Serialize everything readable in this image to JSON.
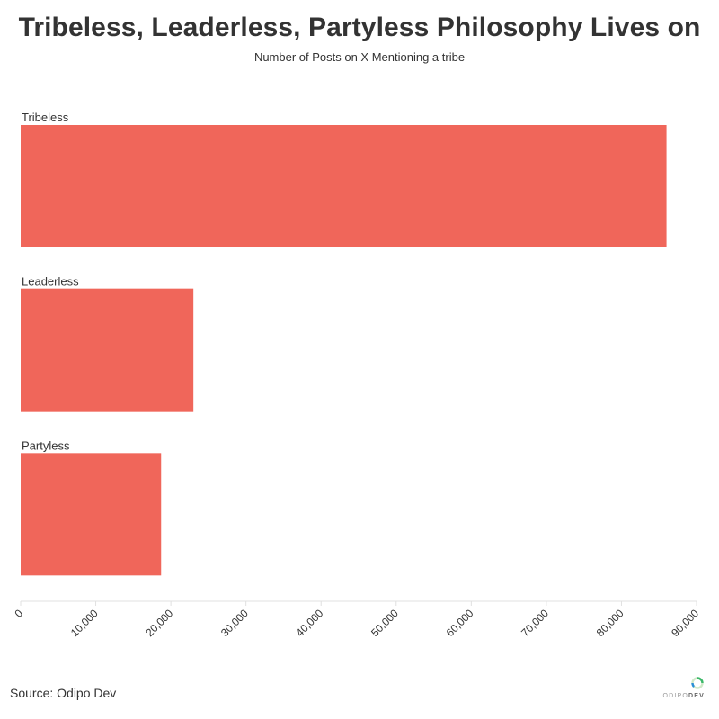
{
  "header": {
    "title": "Tribeless, Leaderless, Partyless Philosophy Lives on",
    "subtitle": "Number of Posts on X Mentioning a tribe"
  },
  "footer": {
    "source": "Source: Odipo Dev",
    "logo_light": "ODIPO",
    "logo_bold": "DEV"
  },
  "colors": {
    "bar": "#f0665a",
    "axis": "#e0e0e0",
    "text": "#333333"
  },
  "chart_data": {
    "type": "bar",
    "orientation": "horizontal",
    "title": "Tribeless, Leaderless, Partyless Philosophy Lives on",
    "subtitle": "Number of Posts on X Mentioning a tribe",
    "categories": [
      "Tribeless",
      "Leaderless",
      "Partyless"
    ],
    "values": [
      86000,
      23000,
      18700
    ],
    "xlim": [
      0,
      90000
    ],
    "x_ticks": [
      0,
      10000,
      20000,
      30000,
      40000,
      50000,
      60000,
      70000,
      80000,
      90000
    ],
    "x_tick_labels": [
      "0",
      "10,000",
      "20,000",
      "30,000",
      "40,000",
      "50,000",
      "60,000",
      "70,000",
      "80,000",
      "90,000"
    ],
    "xlabel": "",
    "ylabel": "",
    "grid": false,
    "legend": "none"
  }
}
